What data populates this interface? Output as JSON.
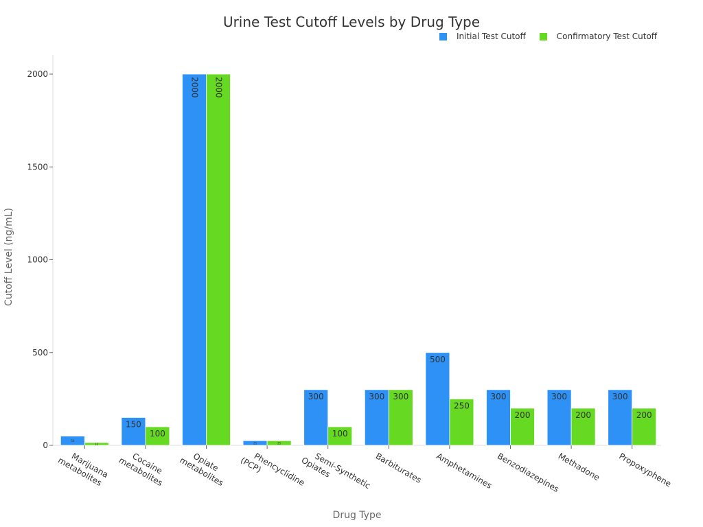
{
  "chart_data": {
    "type": "bar",
    "title": "Urine Test Cutoff Levels by Drug Type",
    "xlabel": "Drug Type",
    "ylabel": "Cutoff Level (ng/mL)",
    "ylim": [
      0,
      2000
    ],
    "yticks": [
      0,
      500,
      1000,
      1500,
      2000
    ],
    "grid": false,
    "legend_position": "top-right",
    "categories": [
      [
        "Marijuana",
        "metabolites"
      ],
      [
        "Cocaine",
        "metabolites"
      ],
      [
        "Opiate",
        "metabolites"
      ],
      [
        "Phencyclidine",
        "(PCP)"
      ],
      [
        "Semi-Synthetic",
        "Opiates"
      ],
      [
        "Barbiturates"
      ],
      [
        "Amphetamines"
      ],
      [
        "Benzodiazepines"
      ],
      [
        "Methadone"
      ],
      [
        "Propoxyphene"
      ]
    ],
    "series": [
      {
        "name": "Initial Test Cutoff",
        "color": "#2e91f5",
        "values": [
          50,
          150,
          2000,
          25,
          300,
          300,
          500,
          300,
          300,
          300
        ],
        "labels": [
          "50",
          "150",
          "2000",
          "25",
          "300",
          "300",
          "500",
          "300",
          "300",
          "300"
        ]
      },
      {
        "name": "Confirmatory Test Cutoff",
        "color": "#66d922",
        "values": [
          15,
          100,
          2000,
          25,
          100,
          300,
          250,
          200,
          200,
          200
        ],
        "labels": [
          "15",
          "100",
          "2000",
          "25",
          "100",
          "300",
          "250",
          "200",
          "200",
          "200"
        ]
      }
    ]
  }
}
